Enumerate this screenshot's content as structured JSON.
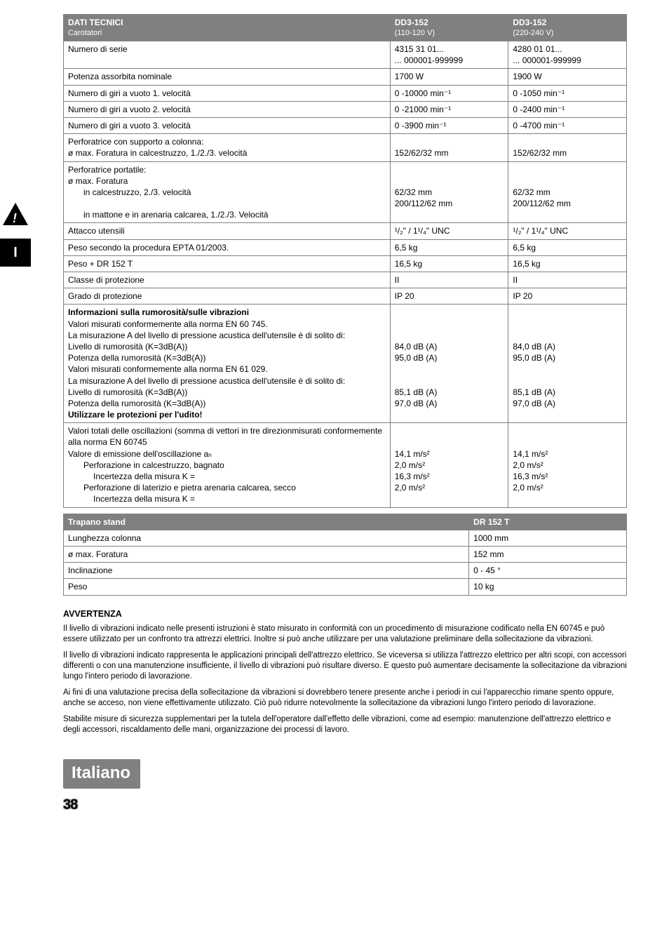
{
  "sideTab": {
    "langLetter": "I"
  },
  "specTable": {
    "head": {
      "c0a": "DATI TECNICI",
      "c0b": "Carotatori",
      "c1a": "DD3-152",
      "c1b": "(110-120 V)",
      "c2a": "DD3-152",
      "c2b": "(220-240 V)"
    },
    "rows": [
      {
        "l": "Numero di serie",
        "v1": "4315 31 01...\n... 000001-999999",
        "v2": "4280 01 01...\n... 000001-999999"
      },
      {
        "l": "Potenza assorbita nominale",
        "v1": "1700 W",
        "v2": "1900 W"
      },
      {
        "l": "Numero di giri a vuoto 1. velocità",
        "v1": "0 -10000 min⁻¹",
        "v2": "0 -1050 min⁻¹"
      },
      {
        "l": "Numero di giri a vuoto 2. velocità",
        "v1": "0 -21000 min⁻¹",
        "v2": "0 -2400 min⁻¹"
      },
      {
        "l": "Numero di giri a vuoto 3. velocità",
        "v1": "0 -3900 min⁻¹",
        "v2": "0 -4700 min⁻¹"
      },
      {
        "l": "Perforatrice con supporto a colonna:\nø max. Foratura in calcestruzzo, 1./2./3. velocità",
        "v1": "\n152/62/32 mm",
        "v2": "\n152/62/32 mm"
      },
      {
        "l": "Perforatrice portatile:\nø max. Foratura\n    in calcestruzzo, 2./3. velocità\n    in mattone e in arenaria calcarea, 1./2./3. Velocità",
        "v1": "\n\n62/32 mm\n200/112/62 mm",
        "v2": "\n\n62/32 mm\n200/112/62 mm"
      },
      {
        "l": "Attacco utensili",
        "v1": "¹/₂\" / 1¹/₄\" UNC",
        "v2": "¹/₂\" / 1¹/₄\" UNC"
      },
      {
        "l": "Peso secondo la procedura EPTA 01/2003.",
        "v1": "6,5 kg",
        "v2": "6,5 kg"
      },
      {
        "l": "Peso + DR 152 T",
        "v1": "16,5 kg",
        "v2": "16,5 kg"
      },
      {
        "l": "Classe di protezione",
        "v1": "II",
        "v2": "II"
      },
      {
        "l": "Grado di protezione",
        "v1": "IP 20",
        "v2": "IP 20"
      }
    ],
    "noise": {
      "title": "Informazioni sulla rumorosità/sulle vibrazioni",
      "p1": "Valori misurati conformemente alla norma EN 60 745.",
      "p2": "La misurazione A del livello di pressione acustica dell'utensile è di solito di:",
      "r1": "Livello di rumorosità (K=3dB(A))",
      "r2": "Potenza della rumorosità (K=3dB(A))",
      "r1v1": "84,0 dB (A)",
      "r1v2": "84,0 dB (A)",
      "r2v1": "95,0 dB (A)",
      "r2v2": "95,0 dB (A)",
      "p3": "Valori misurati conformemente alla norma EN 61 029.",
      "p4": "La misurazione A del livello di pressione acustica dell'utensile è di solito di:",
      "r3": "Livello di rumorosità (K=3dB(A))",
      "r4": "Potenza della rumorosità (K=3dB(A))",
      "r3v1": "85,1 dB (A)",
      "r3v2": "85,1 dB (A)",
      "r4v1": "97,0 dB (A)",
      "r4v2": "97,0 dB (A)",
      "warn": "Utilizzare le protezioni per l'udito!"
    },
    "vib": {
      "p1": "Valori totali delle oscillazioni (somma di vettori in tre direzionmisurati conformemente alla norma EN 60745",
      "p2": "Valore di emissione dell'oscillazione aₕ",
      "r1": "Perforazione in calcestruzzo, bagnato",
      "r1b": "Incertezza della misura K =",
      "r1v1": "14,1 m/s²",
      "r1bv1": "2,0 m/s²",
      "r1v2": "14,1 m/s²",
      "r1bv2": "2,0 m/s²",
      "r2": "Perforazione di laterizio e pietra arenaria calcarea, secco",
      "r2b": "Incertezza della misura K =",
      "r2v1": "16,3 m/s²",
      "r2bv1": "2,0 m/s²",
      "r2v2": "16,3 m/s²",
      "r2bv2": "2,0 m/s²"
    }
  },
  "standTable": {
    "head": {
      "c0": "Trapano stand",
      "c1": "DR 152 T"
    },
    "rows": [
      {
        "l": "Lunghezza colonna",
        "v": "1000 mm"
      },
      {
        "l": "ø max. Foratura",
        "v": "152 mm"
      },
      {
        "l": "Inclinazione",
        "v": "0 - 45 °"
      },
      {
        "l": "Peso",
        "v": "10 kg"
      }
    ]
  },
  "avvTitle": "AVVERTENZA",
  "avvParas": [
    "Il livello di vibrazioni indicato nelle presenti istruzioni è stato misurato in conformità con un procedimento di misurazione codificato nella EN 60745 e può essere utilizzato per un confronto tra attrezzi elettrici. Inoltre si può anche utilizzare per una valutazione preliminare della sollecitazione da vibrazioni.",
    "Il livello di vibrazioni indicato rappresenta le applicazioni principali dell'attrezzo elettrico. Se viceversa si utilizza l'attrezzo elettrico per altri scopi, con accessori differenti o con una manutenzione insufficiente, il livello di vibrazioni può risultare diverso. E questo può aumentare decisamente la sollecitazione da vibrazioni lungo l'intero periodo di lavorazione.",
    "Ai fini di una valutazione precisa della sollecitazione da vibrazioni si dovrebbero tenere presente anche i periodi in cui l'apparecchio rimane spento oppure, anche se acceso, non viene effettivamente utilizzato. Ciò può ridurre notevolmente la sollecitazione da vibrazioni lungo l'intero periodo di lavorazione.",
    "Stabilite misure di sicurezza supplementari per la tutela dell'operatore dall'effetto delle vibrazioni, come ad esempio: manutenzione dell'attrezzo elettrico e degli accessori, riscaldamento delle mani, organizzazione dei processi di lavoro."
  ],
  "langPill": "Italiano",
  "pageNum": "38"
}
